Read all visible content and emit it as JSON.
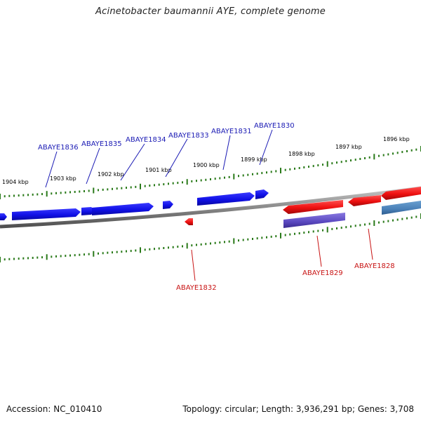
{
  "title": "Acinetobacter baumannii AYE, complete genome",
  "footer": {
    "accession": "Accession: NC_010410",
    "summary": "Topology: circular; Length: 3,936,291 bp; Genes: 3,708"
  },
  "colors": {
    "forward": "#1010e8",
    "reverse": "#e81010",
    "purple": "#6050c0",
    "steel": "#4a80b8",
    "ticks": "#2a7a1a",
    "backbone": "#8a8a8a",
    "label_forward": "#1a1ab4",
    "label_reverse": "#c81414"
  },
  "ruler_labels": [
    "1904 kbp",
    "1903 kbp",
    "1902 kbp",
    "1901 kbp",
    "1900 kbp",
    "1899 kbp",
    "1898 kbp",
    "1897 kbp",
    "1896 kbp"
  ],
  "forward_labels": [
    "ABAYE1836",
    "ABAYE1835",
    "ABAYE1834",
    "ABAYE1833",
    "ABAYE1831",
    "ABAYE1830"
  ],
  "reverse_labels": [
    "ABAYE1832",
    "ABAYE1829",
    "ABAYE1828"
  ]
}
